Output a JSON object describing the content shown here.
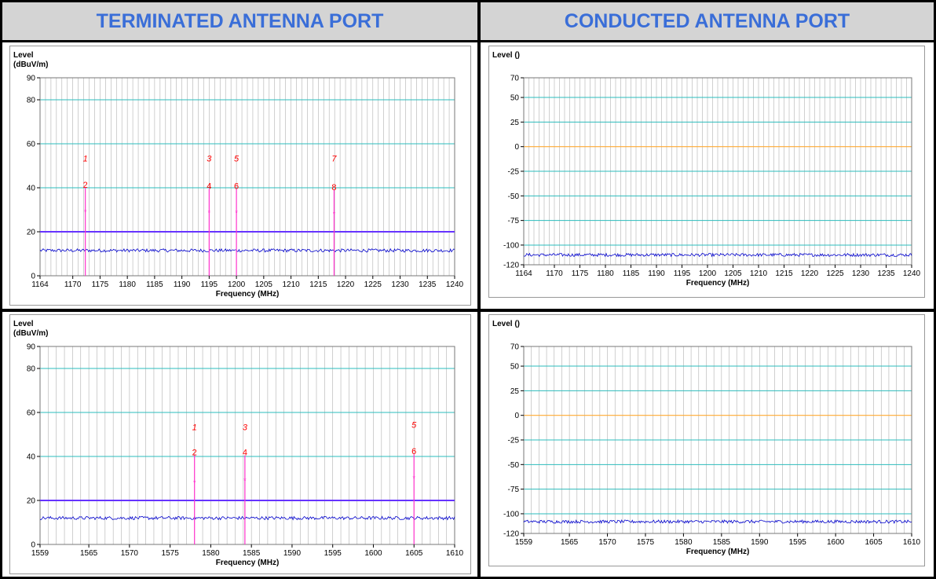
{
  "headers": {
    "left": "TERMINATED ANTENNA PORT",
    "right": "CONDUCTED ANTENNA PORT"
  },
  "colors": {
    "header_text": "#3a6ed8",
    "header_bg": "#d4d4d4",
    "grid": "#2bbcbc",
    "vgrid": "#b0b0b0",
    "trace": "#0000cc",
    "limit": "#6633ff",
    "marker": "#ff33cc",
    "marker_text": "#ff0000",
    "zero_line": "#ffaa33"
  },
  "chart_data": [
    {
      "id": "term-l5",
      "type": "line",
      "title": "",
      "ylabel": "Level\n(dBuV/m)",
      "xlabel": "Frequency (MHz)",
      "xlim": [
        1164,
        1240
      ],
      "ylim": [
        0,
        90
      ],
      "x_ticks": [
        1164,
        1170,
        1175,
        1180,
        1185,
        1190,
        1195,
        1200,
        1205,
        1210,
        1215,
        1220,
        1225,
        1230,
        1235,
        1240
      ],
      "y_ticks": [
        0,
        20,
        40,
        60,
        80,
        90
      ],
      "y_grid": [
        20,
        40,
        60,
        80
      ],
      "limit_line": 20,
      "trace_level": 11.5,
      "markers": [
        {
          "x": 1172.3,
          "peak_label": "1",
          "peak_y": 52,
          "qp_label": "2",
          "qp_y": 40,
          "av_y": 29
        },
        {
          "x": 1195.0,
          "peak_label": "3",
          "peak_y": 52,
          "qp_label": "4",
          "qp_y": 39.5,
          "av_y": 28.5
        },
        {
          "x": 1200.0,
          "peak_label": "5",
          "peak_y": 52,
          "qp_label": "6",
          "qp_y": 39.5,
          "av_y": 28.5
        },
        {
          "x": 1217.9,
          "peak_label": "7",
          "peak_y": 52,
          "qp_label": "8",
          "qp_y": 39,
          "av_y": 28
        }
      ]
    },
    {
      "id": "cond-l5",
      "type": "line",
      "title": "",
      "ylabel": "Level ()",
      "xlabel": "Frequency (MHz)",
      "xlim": [
        1164,
        1240
      ],
      "ylim": [
        -120,
        70
      ],
      "x_ticks": [
        1164,
        1170,
        1175,
        1180,
        1185,
        1190,
        1195,
        1200,
        1205,
        1210,
        1215,
        1220,
        1225,
        1230,
        1235,
        1240
      ],
      "y_ticks": [
        70,
        50,
        25,
        0,
        -25,
        -50,
        -75,
        -100,
        -120
      ],
      "y_grid": [
        70,
        50,
        25,
        -25,
        -50,
        -75,
        -100
      ],
      "zero_line": 0,
      "trace_level": -110
    },
    {
      "id": "term-l1",
      "type": "line",
      "title": "",
      "ylabel": "Level\n(dBuV/m)",
      "xlabel": "Frequency (MHz)",
      "xlim": [
        1559,
        1610
      ],
      "ylim": [
        0,
        90
      ],
      "x_ticks": [
        1559,
        1565,
        1570,
        1575,
        1580,
        1585,
        1590,
        1595,
        1600,
        1605,
        1610
      ],
      "y_ticks": [
        0,
        20,
        40,
        60,
        80,
        90
      ],
      "y_grid": [
        20,
        40,
        60,
        80
      ],
      "limit_line": 20,
      "trace_level": 12,
      "markers": [
        {
          "x": 1578.0,
          "peak_label": "1",
          "peak_y": 52,
          "qp_label": "2",
          "qp_y": 40.5,
          "av_y": 28
        },
        {
          "x": 1584.2,
          "peak_label": "3",
          "peak_y": 52,
          "qp_label": "4",
          "qp_y": 40.5,
          "av_y": 29
        },
        {
          "x": 1605.0,
          "peak_label": "5",
          "peak_y": 53,
          "qp_label": "6",
          "qp_y": 41,
          "av_y": 30
        }
      ]
    },
    {
      "id": "cond-l1",
      "type": "line",
      "title": "",
      "ylabel": "Level ()",
      "xlabel": "Frequency (MHz)",
      "xlim": [
        1559,
        1610
      ],
      "ylim": [
        -120,
        70
      ],
      "x_ticks": [
        1559,
        1565,
        1570,
        1575,
        1580,
        1585,
        1590,
        1595,
        1600,
        1605,
        1610
      ],
      "y_ticks": [
        70,
        50,
        25,
        0,
        -25,
        -50,
        -75,
        -100,
        -120
      ],
      "y_grid": [
        70,
        50,
        25,
        -25,
        -50,
        -75,
        -100
      ],
      "zero_line": 0,
      "trace_level": -108
    }
  ]
}
